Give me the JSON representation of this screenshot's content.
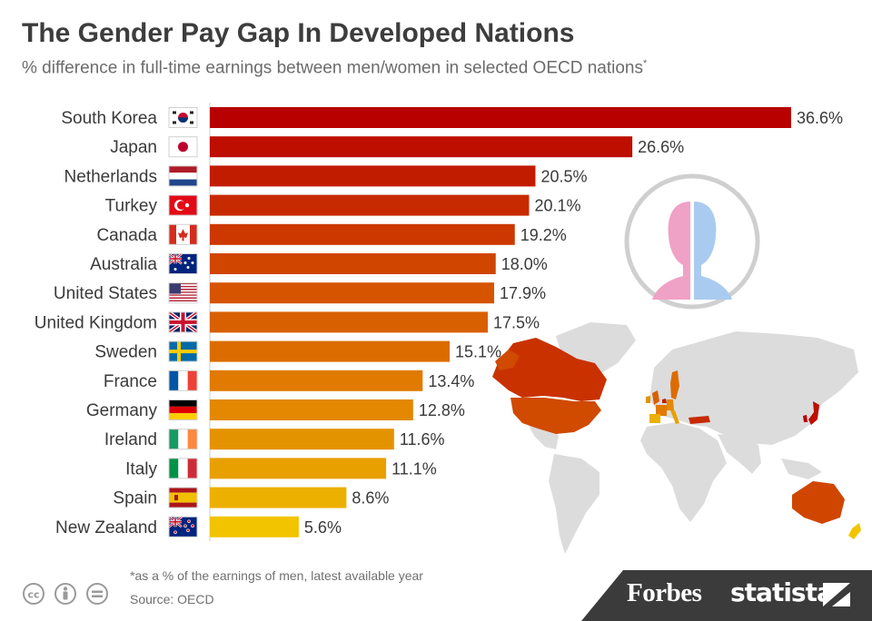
{
  "colors": {
    "gradient": [
      "#b80000",
      "#bd0e00",
      "#c21c00",
      "#c72a00",
      "#cc3800",
      "#d04600",
      "#d65400",
      "#d86000",
      "#dc6c00",
      "#e07a00",
      "#e38800",
      "#e49300",
      "#e8a000",
      "#ecb000",
      "#f2c400"
    ],
    "background": "#ffffff",
    "footer": "#3b3b3b",
    "map_land": "#dcdcdc",
    "female": "#f0a1c6",
    "male": "#aacbf0"
  },
  "chart_data": {
    "type": "bar",
    "orientation": "horizontal",
    "title": "The Gender Pay Gap In Developed Nations",
    "subtitle": "% difference in full-time earnings between men/women in selected OECD nations",
    "subtitle_mark": "*",
    "categories": [
      "South Korea",
      "Japan",
      "Netherlands",
      "Turkey",
      "Canada",
      "Australia",
      "United States",
      "United Kingdom",
      "Sweden",
      "France",
      "Germany",
      "Ireland",
      "Italy",
      "Spain",
      "New Zealand"
    ],
    "values": [
      36.6,
      26.6,
      20.5,
      20.1,
      19.2,
      18.0,
      17.9,
      17.5,
      15.1,
      13.4,
      12.8,
      11.6,
      11.1,
      8.6,
      5.6
    ],
    "value_labels": [
      "36.6%",
      "26.6%",
      "20.5%",
      "20.1%",
      "19.2%",
      "18.0%",
      "17.9%",
      "17.5%",
      "15.1%",
      "13.4%",
      "12.8%",
      "11.6%",
      "11.1%",
      "8.6%",
      "5.6%"
    ],
    "flag_icons": [
      "flag-south-korea-icon",
      "flag-japan-icon",
      "flag-netherlands-icon",
      "flag-turkey-icon",
      "flag-canada-icon",
      "flag-australia-icon",
      "flag-united-states-icon",
      "flag-united-kingdom-icon",
      "flag-sweden-icon",
      "flag-france-icon",
      "flag-germany-icon",
      "flag-ireland-icon",
      "flag-italy-icon",
      "flag-spain-icon",
      "flag-new-zealand-icon"
    ],
    "xlim": [
      0,
      36.6
    ],
    "xlabel": "",
    "ylabel": "",
    "grid": false,
    "legend": "none"
  },
  "footer": {
    "note": "*as a % of the earnings of men, latest available year",
    "source": "Source: OECD",
    "brand_forbes": "Forbes",
    "brand_statista": "statista",
    "license_icons": [
      "cc-icon",
      "attribution-icon",
      "no-derivatives-icon"
    ]
  }
}
